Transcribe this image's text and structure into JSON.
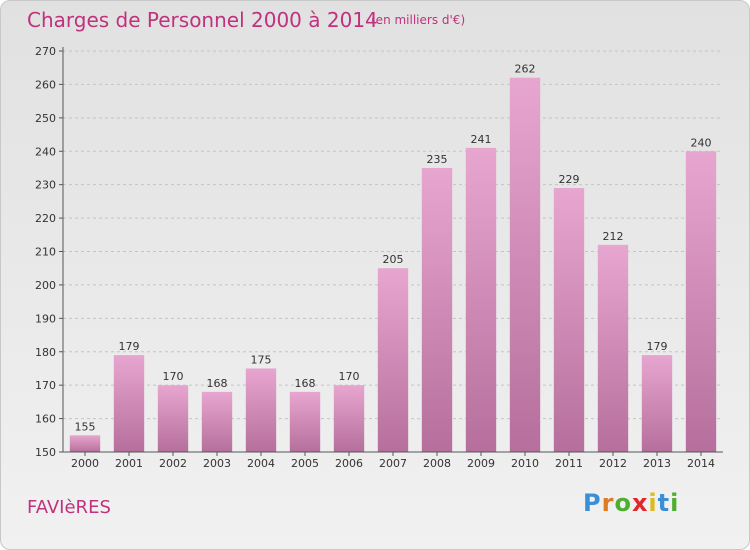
{
  "header": {
    "title": "Charges de Personnel 2000 à 2014",
    "subtitle": "(en milliers d'€)"
  },
  "commune": "FAVIèRES",
  "logo": {
    "letters": [
      "P",
      "r",
      "o",
      "x",
      "i",
      "t",
      "i"
    ],
    "colors": [
      "#3a8fd6",
      "#e07b1f",
      "#4caf2e",
      "#e2262b",
      "#e0b81f",
      "#3a8fd6",
      "#4caf2e"
    ]
  },
  "colors": {
    "bar_top": "#e7a6cf",
    "bar_bottom": "#b66f9c",
    "text_accent": "#c0327d"
  },
  "chart_data": {
    "type": "bar",
    "title": "Charges de Personnel 2000 à 2014",
    "subtitle": "(en milliers d'€)",
    "categories": [
      "2000",
      "2001",
      "2002",
      "2003",
      "2004",
      "2005",
      "2006",
      "2007",
      "2008",
      "2009",
      "2010",
      "2011",
      "2012",
      "2013",
      "2014"
    ],
    "values": [
      155,
      179,
      170,
      168,
      175,
      168,
      170,
      205,
      235,
      241,
      262,
      229,
      212,
      179,
      240
    ],
    "ylim": [
      150,
      270
    ],
    "yticks": [
      150,
      160,
      170,
      180,
      190,
      200,
      210,
      220,
      230,
      240,
      250,
      260,
      270
    ],
    "grid": true
  }
}
